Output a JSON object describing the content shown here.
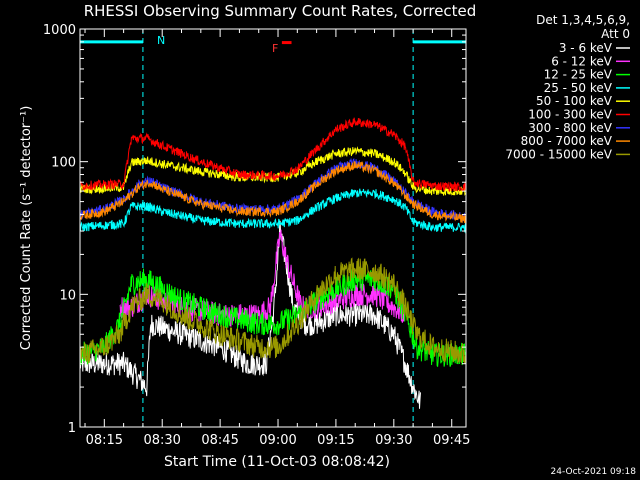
{
  "chart_data": {
    "type": "line",
    "title": "RHESSI Observing Summary Count Rates, Corrected",
    "xlabel": "Start Time (11-Oct-03 08:08:42)",
    "ylabel": "Corrected Count Rate (s⁻¹ detector⁻¹)",
    "x_unit": "minutes after 08:00 UT",
    "xlim": [
      8.7,
      108.7
    ],
    "ylim": [
      1,
      1000
    ],
    "yscale": "log",
    "grid": false,
    "x_ticks": [
      {
        "label": "08:15",
        "value": 15
      },
      {
        "label": "08:30",
        "value": 30
      },
      {
        "label": "08:45",
        "value": 45
      },
      {
        "label": "09:00",
        "value": 60
      },
      {
        "label": "09:15",
        "value": 75
      },
      {
        "label": "09:30",
        "value": 90
      },
      {
        "label": "09:45",
        "value": 105
      }
    ],
    "y_ticks": [
      {
        "label": "1",
        "value": 1
      },
      {
        "label": "10",
        "value": 10
      },
      {
        "label": "100",
        "value": 100
      },
      {
        "label": "1000",
        "value": 1000
      }
    ],
    "legend_header": [
      "Det 1,3,4,5,6,9,",
      "Att 0"
    ],
    "legend_position": "right",
    "series": [
      {
        "name": "3 - 6 keV",
        "color": "#ffffff",
        "x": [
          8.7,
          20,
          26,
          27,
          35,
          45,
          52,
          57,
          59,
          60.5,
          62,
          64,
          67,
          70,
          75,
          80,
          85,
          90,
          93,
          95,
          97
        ],
        "y": [
          3,
          3,
          2,
          6,
          5,
          4,
          3,
          3,
          8,
          30,
          18,
          8,
          6,
          6,
          7,
          7,
          7,
          5,
          3,
          2,
          1.5
        ]
      },
      {
        "name": "6 - 12 keV",
        "color": "#ff33ff",
        "x": [
          19,
          22,
          26,
          30,
          35,
          45,
          55,
          58,
          60.5,
          63,
          66,
          70,
          75,
          80,
          85,
          90,
          93
        ],
        "y": [
          8,
          8,
          10,
          9,
          8,
          7,
          7,
          8,
          28,
          15,
          8,
          8,
          9,
          10,
          10,
          8,
          7
        ]
      },
      {
        "name": "12 - 25 keV",
        "color": "#00ff00",
        "x": [
          8.7,
          15,
          19,
          22,
          26,
          30,
          35,
          45,
          55,
          60,
          65,
          70,
          75,
          80,
          85,
          90,
          93,
          96,
          100,
          108.7
        ],
        "y": [
          3.5,
          4,
          6,
          12,
          13,
          11,
          9,
          7,
          6,
          6,
          7,
          9,
          11,
          13,
          13,
          11,
          7,
          4,
          3.5,
          3.5
        ]
      },
      {
        "name": "25 - 50 keV",
        "color": "#00ffff",
        "x": [
          8.7,
          20,
          22,
          26,
          30,
          40,
          50,
          60,
          65,
          70,
          75,
          80,
          85,
          90,
          93,
          95,
          100,
          108.7
        ],
        "y": [
          32,
          34,
          46,
          46,
          42,
          36,
          34,
          34,
          36,
          45,
          53,
          58,
          58,
          52,
          45,
          35,
          32,
          32
        ]
      },
      {
        "name": "50 - 100 keV",
        "color": "#ffff00",
        "x": [
          8.7,
          20,
          22,
          26,
          30,
          40,
          50,
          60,
          65,
          70,
          75,
          80,
          85,
          90,
          93,
          95,
          100,
          108.7
        ],
        "y": [
          62,
          64,
          98,
          102,
          96,
          84,
          76,
          76,
          82,
          100,
          115,
          120,
          115,
          100,
          82,
          64,
          60,
          60
        ]
      },
      {
        "name": "100 - 300 keV",
        "color": "#ff0000",
        "x": [
          8.7,
          20,
          22,
          26,
          30,
          40,
          50,
          60,
          65,
          70,
          75,
          80,
          85,
          90,
          93,
          95,
          100,
          108.7
        ],
        "y": [
          66,
          68,
          150,
          150,
          132,
          100,
          80,
          78,
          88,
          125,
          175,
          200,
          190,
          160,
          130,
          70,
          66,
          64
        ]
      },
      {
        "name": "300 - 800 keV",
        "color": "#3333ff",
        "x": [
          8.7,
          15,
          20,
          24,
          27,
          30,
          40,
          50,
          60,
          65,
          70,
          75,
          80,
          85,
          90,
          95,
          100,
          108.7
        ],
        "y": [
          40,
          44,
          52,
          68,
          72,
          64,
          50,
          44,
          44,
          52,
          70,
          90,
          98,
          90,
          72,
          50,
          42,
          38
        ]
      },
      {
        "name": "800 - 7000 keV",
        "color": "#ff8800",
        "x": [
          8.7,
          15,
          20,
          24,
          27,
          30,
          40,
          50,
          60,
          65,
          70,
          75,
          80,
          85,
          90,
          95,
          100,
          108.7
        ],
        "y": [
          39,
          42,
          50,
          65,
          70,
          62,
          48,
          42,
          42,
          50,
          67,
          86,
          94,
          86,
          69,
          48,
          40,
          37
        ]
      },
      {
        "name": "7000 - 15000 keV",
        "color": "#999900",
        "x": [
          8.7,
          15,
          19,
          22,
          26,
          30,
          35,
          45,
          55,
          60,
          65,
          70,
          75,
          80,
          85,
          90,
          93,
          96,
          100,
          108.7
        ],
        "y": [
          3.5,
          4,
          5,
          8,
          10,
          9,
          7,
          5,
          4,
          4,
          6,
          10,
          14,
          15.5,
          15,
          12,
          8,
          5,
          4,
          3.5
        ]
      }
    ],
    "annotations": {
      "N_flag": "N",
      "F_flag": "F",
      "night_intervals": [
        [
          8.7,
          25
        ],
        [
          95,
          108.7
        ]
      ],
      "night_line_value": 800,
      "flare_interval": [
        61,
        63.5
      ],
      "flare_line_value": 790,
      "dashed_lines": [
        25,
        95,
        108.7
      ],
      "colors": {
        "night": "#00ffff",
        "flare": "#ff0000"
      }
    },
    "timestamp": "24-Oct-2021 09:18"
  }
}
